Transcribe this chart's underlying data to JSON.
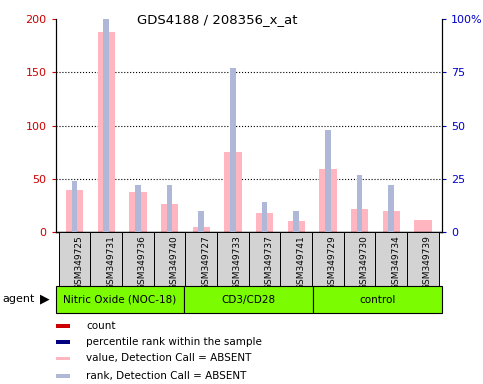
{
  "title": "GDS4188 / 208356_x_at",
  "samples": [
    "GSM349725",
    "GSM349731",
    "GSM349736",
    "GSM349740",
    "GSM349727",
    "GSM349733",
    "GSM349737",
    "GSM349741",
    "GSM349729",
    "GSM349730",
    "GSM349734",
    "GSM349739"
  ],
  "groups": [
    {
      "name": "Nitric Oxide (NOC-18)",
      "start": 0,
      "end": 4,
      "color": "#7CFC00"
    },
    {
      "name": "CD3/CD28",
      "start": 4,
      "end": 8,
      "color": "#7CFC00"
    },
    {
      "name": "control",
      "start": 8,
      "end": 12,
      "color": "#7CFC00"
    }
  ],
  "value_absent": [
    40,
    188,
    38,
    27,
    5,
    75,
    18,
    11,
    59,
    22,
    20,
    12
  ],
  "rank_absent": [
    24,
    118,
    22,
    22,
    10,
    77,
    14,
    10,
    48,
    27,
    22,
    0
  ],
  "pink_bar_width": 0.55,
  "blue_bar_width": 0.18,
  "left_ylim": [
    0,
    200
  ],
  "right_ylim": [
    0,
    100
  ],
  "left_yticks": [
    0,
    50,
    100,
    150,
    200
  ],
  "right_yticks": [
    0,
    25,
    50,
    75,
    100
  ],
  "right_yticklabels": [
    "0",
    "25",
    "50",
    "75",
    "100%"
  ],
  "color_value_absent": "#ffb6c1",
  "color_rank_absent": "#b0b8d8",
  "color_count": "#cc0000",
  "color_percentile": "#000080",
  "left_tick_color": "#cc0000",
  "right_tick_color": "#0000cc",
  "legend_items": [
    {
      "label": "count",
      "color": "#cc0000",
      "light": false
    },
    {
      "label": "percentile rank within the sample",
      "color": "#000080",
      "light": false
    },
    {
      "label": "value, Detection Call = ABSENT",
      "color": "#ffb6c1",
      "light": true
    },
    {
      "label": "rank, Detection Call = ABSENT",
      "color": "#b0b8d8",
      "light": true
    }
  ],
  "sample_box_color": "#d3d3d3",
  "agent_label": "agent"
}
